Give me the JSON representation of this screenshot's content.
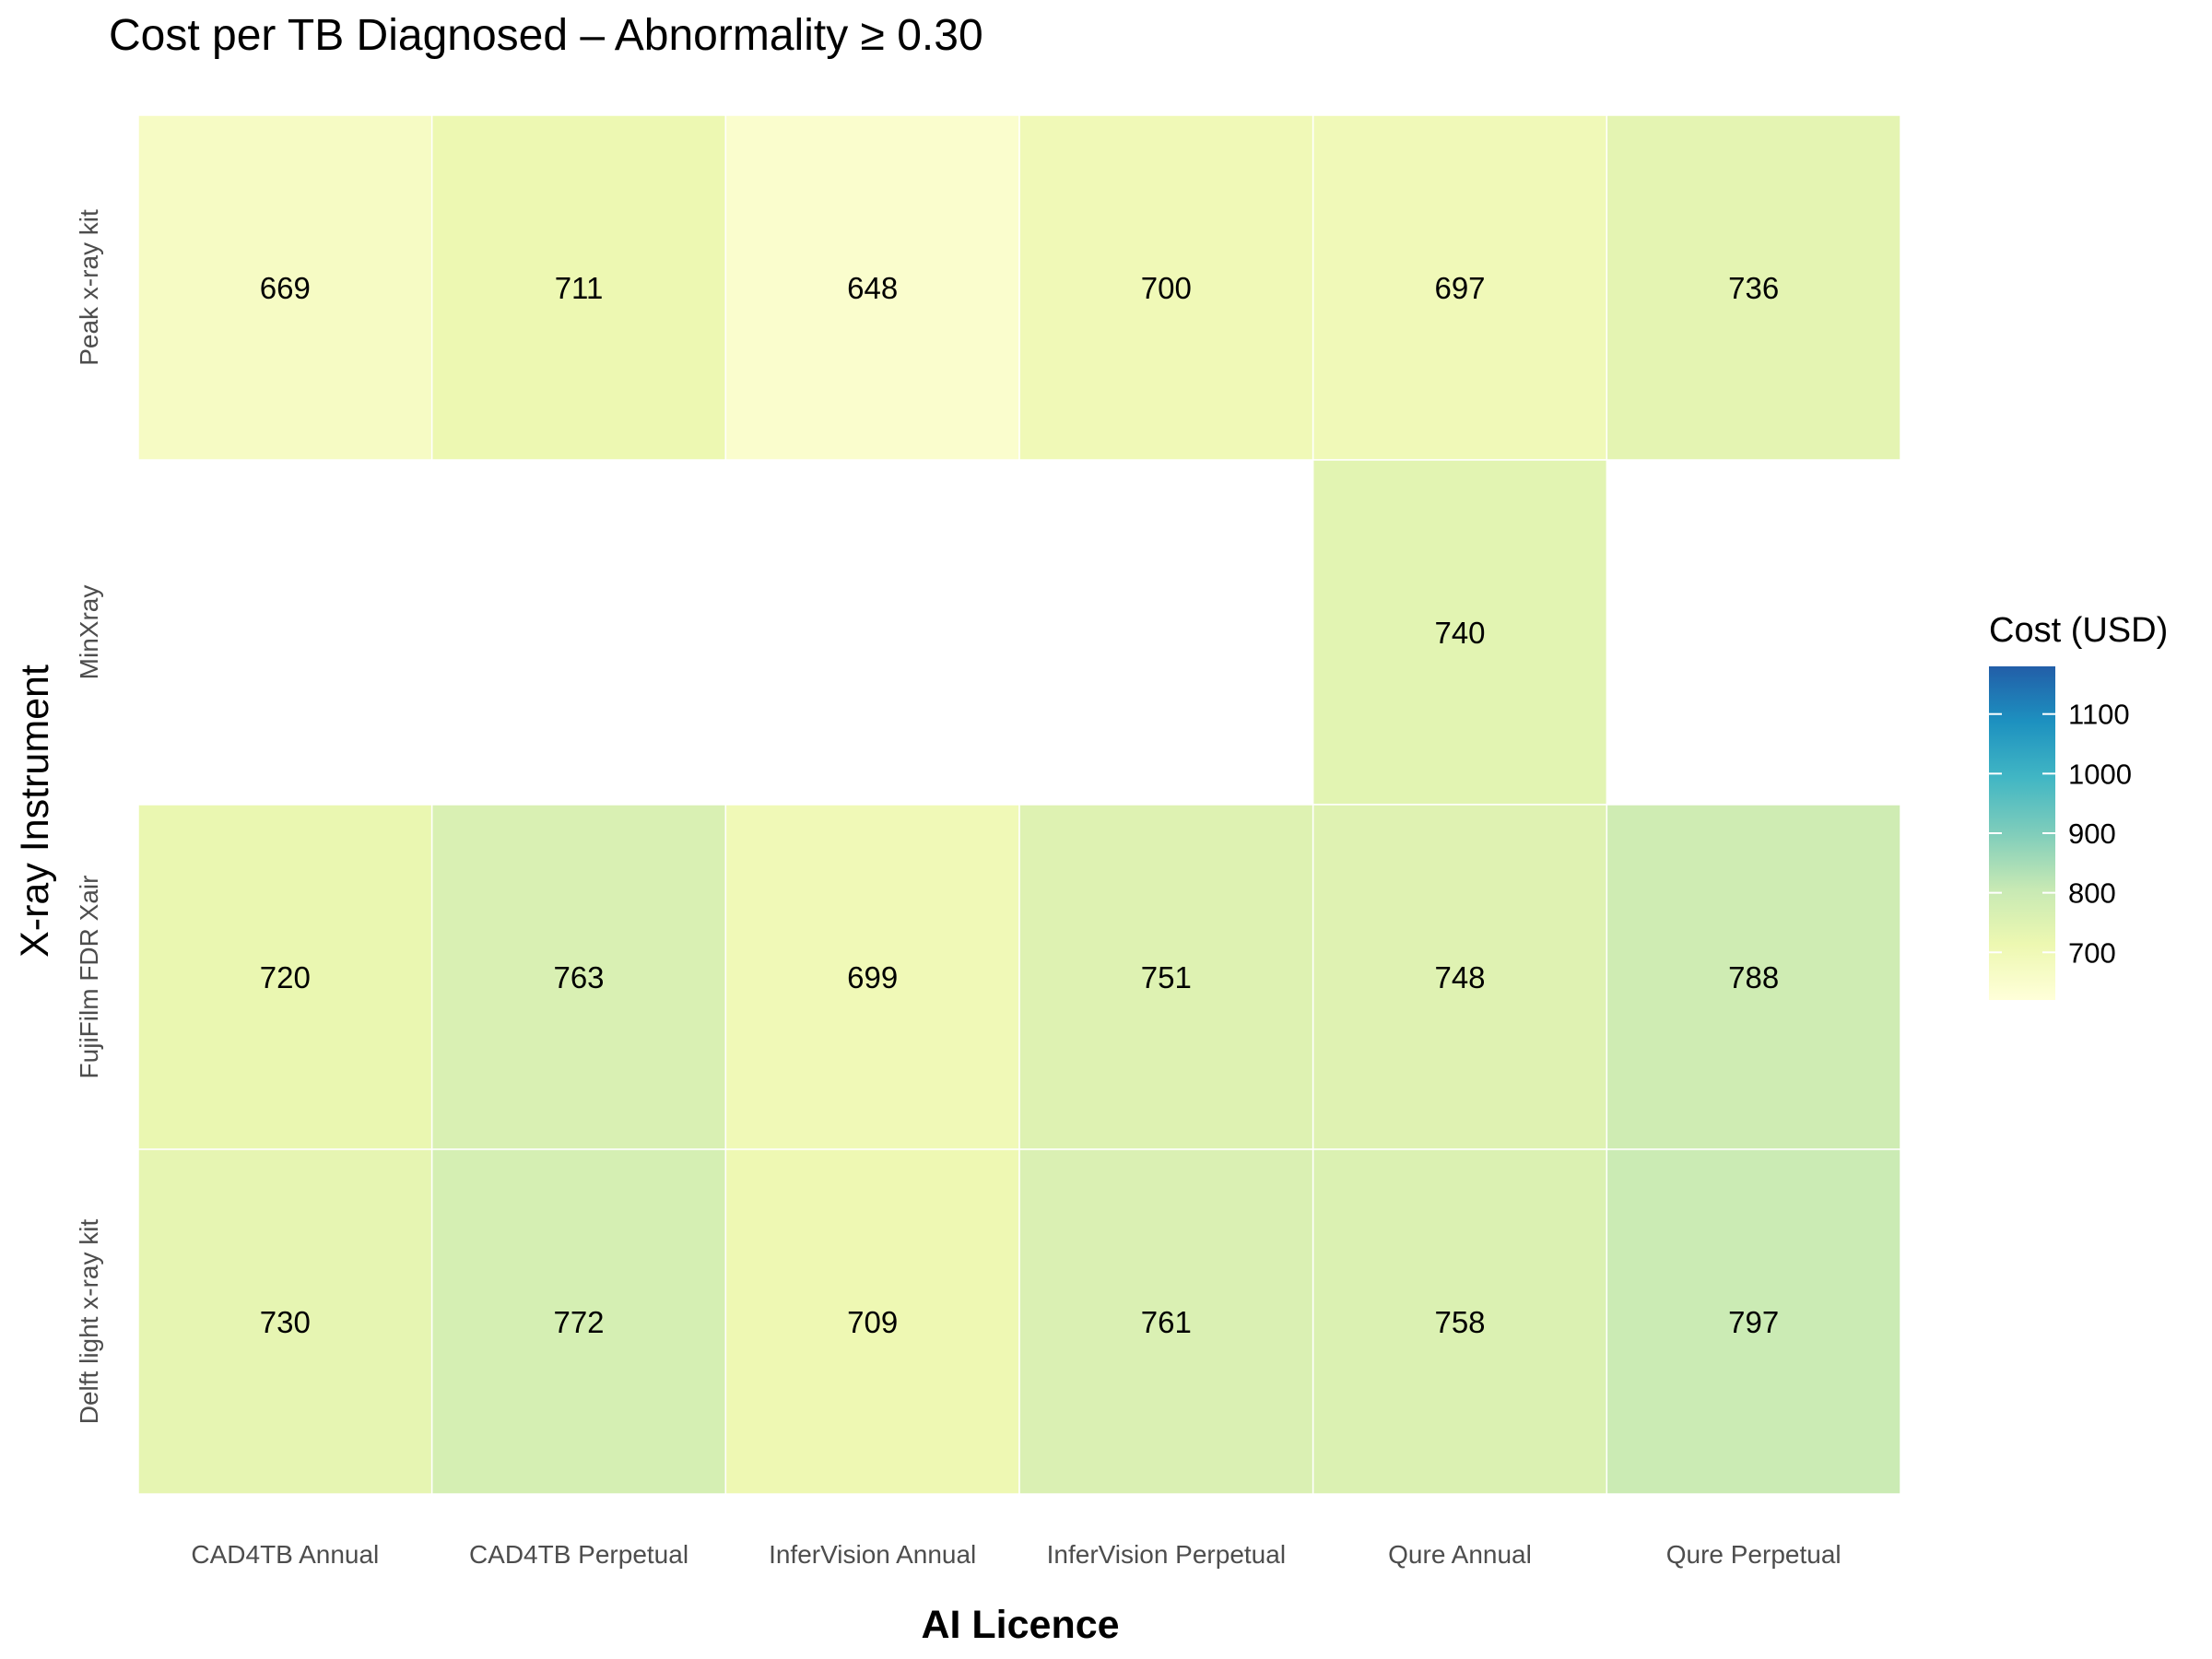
{
  "chart_data": {
    "type": "heatmap",
    "title": "Cost per TB Diagnosed – Abnormality ≥ 0.30",
    "xlabel": "AI Licence",
    "ylabel": "X-ray Instrument",
    "x_categories": [
      "CAD4TB Annual",
      "CAD4TB Perpetual",
      "InferVision Annual",
      "InferVision Perpetual",
      "Qure Annual",
      "Qure Perpetual"
    ],
    "y_categories": [
      "Peak x-ray kit",
      "MinXray",
      "FujiFilm FDR Xair",
      "Delft light x-ray kit"
    ],
    "values": [
      [
        669,
        711,
        648,
        700,
        697,
        736
      ],
      [
        null,
        null,
        null,
        null,
        740,
        null
      ],
      [
        720,
        763,
        699,
        751,
        748,
        788
      ],
      [
        730,
        772,
        709,
        761,
        758,
        797
      ]
    ],
    "legend": {
      "title": "Cost (USD)",
      "ticks": [
        700,
        800,
        900,
        1000,
        1100
      ],
      "range": [
        620,
        1180
      ],
      "placement": "right"
    },
    "colors": {
      "palette": "YlGnBu",
      "stops": [
        "#ffffd9",
        "#edf8b1",
        "#c7e9b4",
        "#7fcdbb",
        "#41b6c4",
        "#1d91c0",
        "#225ea8"
      ]
    },
    "grid": false
  }
}
